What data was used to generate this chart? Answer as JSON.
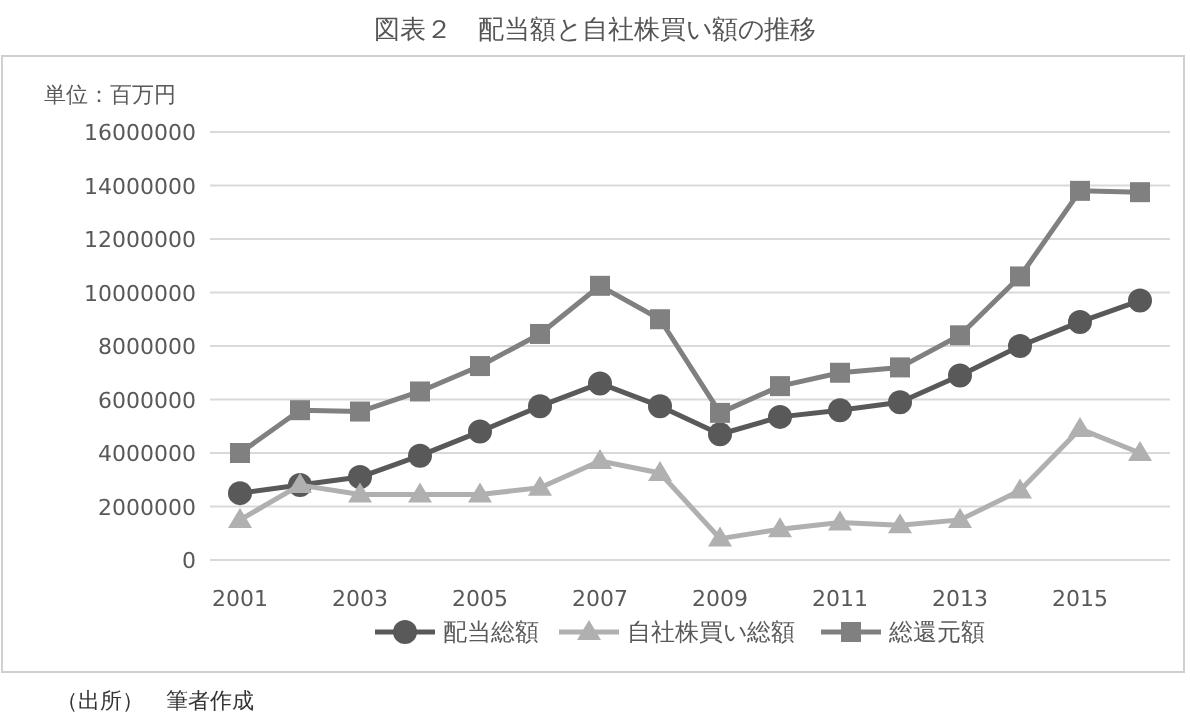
{
  "chart_data": {
    "type": "line",
    "title": "図表２　配当額と自社株買い額の推移",
    "ylabel": "単位：百万円",
    "categories": [
      "2001",
      null,
      "2003",
      null,
      "2005",
      null,
      "2007",
      null,
      "2009",
      null,
      "2011",
      null,
      "2013",
      null,
      "2015",
      null
    ],
    "series": [
      {
        "name": "配当総額",
        "color": "#595959",
        "marker": "circle",
        "values": [
          2500000,
          2800000,
          3100000,
          3900000,
          4800000,
          5750000,
          6600000,
          5750000,
          4700000,
          5350000,
          5600000,
          5900000,
          6900000,
          8000000,
          8900000,
          9700000
        ]
      },
      {
        "name": "自社株買い総額",
        "color": "#b0b0b0",
        "marker": "triangle",
        "values": [
          1500000,
          2800000,
          2450000,
          2450000,
          2450000,
          2700000,
          3700000,
          3250000,
          800000,
          1150000,
          1400000,
          1300000,
          1500000,
          2600000,
          4900000,
          4000000
        ]
      },
      {
        "name": "総還元額",
        "color": "#808080",
        "marker": "square",
        "values": [
          4000000,
          5600000,
          5550000,
          6300000,
          7250000,
          8450000,
          10250000,
          9000000,
          5500000,
          6500000,
          7000000,
          7200000,
          8400000,
          10600000,
          13800000,
          13750000
        ]
      }
    ],
    "ylim": [
      0,
      16000000
    ],
    "yticks": [
      0,
      2000000,
      4000000,
      6000000,
      8000000,
      10000000,
      12000000,
      14000000,
      16000000
    ],
    "grid": "y",
    "legend": "bottom",
    "line_style": "solid",
    "annotations": [
      "（出所）　筆者作成"
    ]
  }
}
